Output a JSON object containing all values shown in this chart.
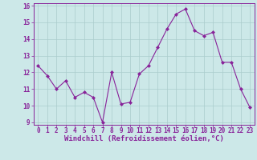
{
  "x": [
    0,
    1,
    2,
    3,
    4,
    5,
    6,
    7,
    8,
    9,
    10,
    11,
    12,
    13,
    14,
    15,
    16,
    17,
    18,
    19,
    20,
    21,
    22,
    23
  ],
  "y": [
    12.4,
    11.8,
    11.0,
    11.5,
    10.5,
    10.8,
    10.5,
    9.0,
    12.0,
    10.1,
    10.2,
    11.9,
    12.4,
    13.5,
    14.6,
    15.5,
    15.8,
    14.5,
    14.2,
    14.4,
    12.6,
    12.6,
    11.0,
    9.9
  ],
  "line_color": "#882299",
  "marker": "D",
  "marker_size": 2.0,
  "bg_color": "#cce8e8",
  "grid_color": "#aacccc",
  "xlabel": "Windchill (Refroidissement éolien,°C)",
  "xlabel_color": "#882299",
  "tick_color": "#882299",
  "ylim": [
    9,
    16
  ],
  "xlim": [
    -0.5,
    23.5
  ],
  "yticks": [
    9,
    10,
    11,
    12,
    13,
    14,
    15,
    16
  ],
  "xticks": [
    0,
    1,
    2,
    3,
    4,
    5,
    6,
    7,
    8,
    9,
    10,
    11,
    12,
    13,
    14,
    15,
    16,
    17,
    18,
    19,
    20,
    21,
    22,
    23
  ],
  "spine_color": "#882299",
  "tick_fontsize": 5.5,
  "xlabel_fontsize": 6.5
}
